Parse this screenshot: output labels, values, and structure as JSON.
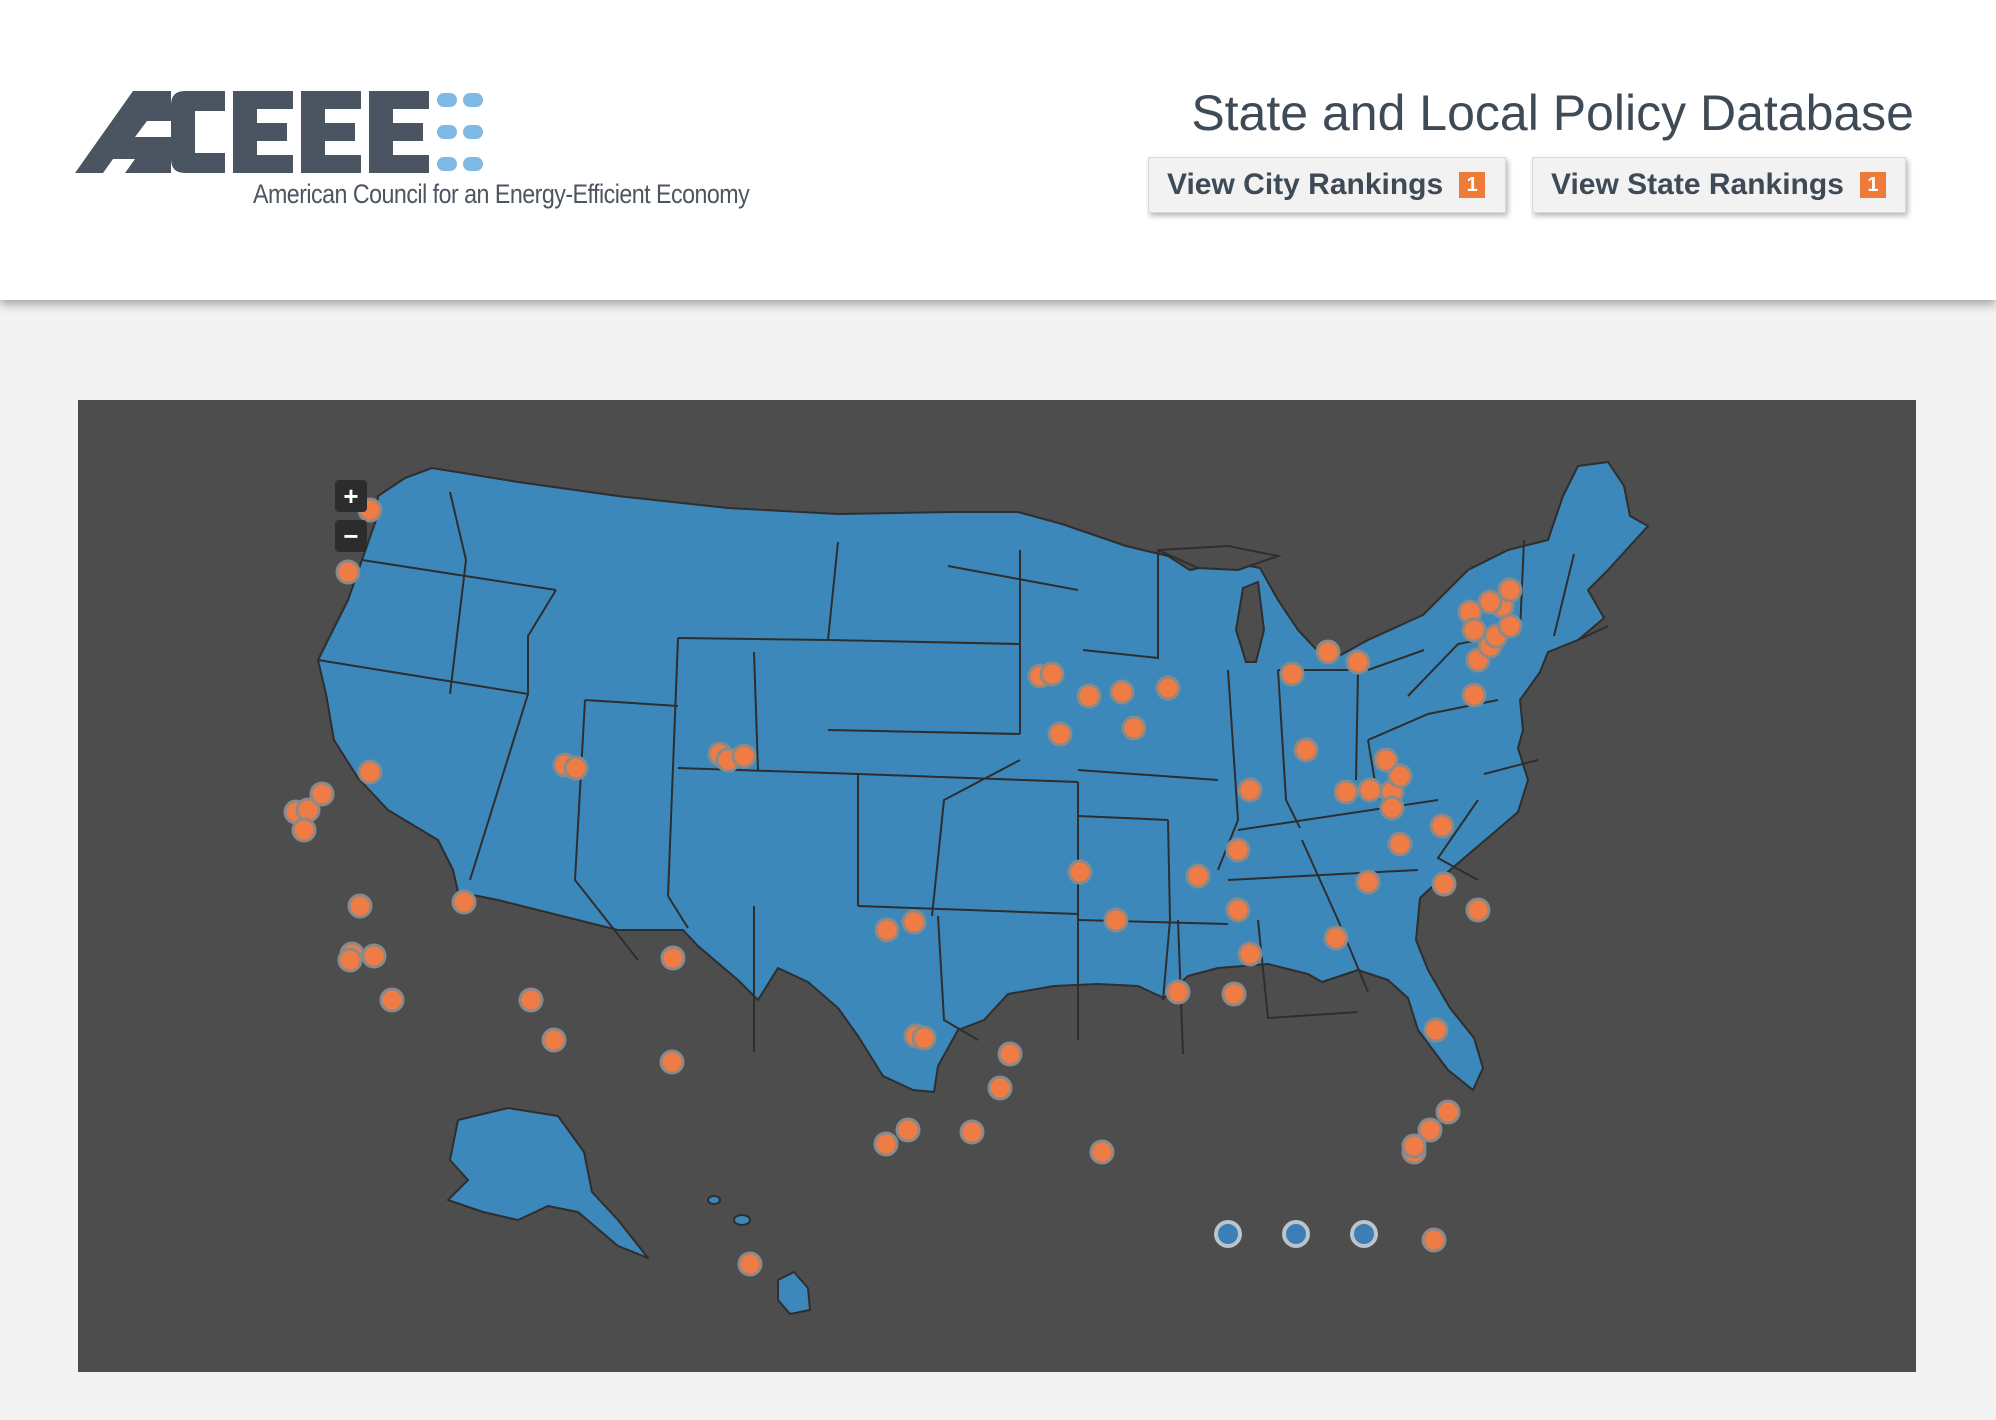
{
  "header": {
    "logo_text": "ACEEE",
    "logo_tagline": "American Council for an Energy-Efficient Economy",
    "title": "State and Local Policy Database",
    "city_rankings_label": "View City Rankings",
    "state_rankings_label": "View State Rankings",
    "ranking_icon": "1"
  },
  "map": {
    "zoom_in_label": "+",
    "zoom_out_label": "−",
    "land_color": "#3d88bb",
    "background_color": "#4d4d4d",
    "marker_color": "#ef7b45",
    "page_dot_count": 3
  }
}
